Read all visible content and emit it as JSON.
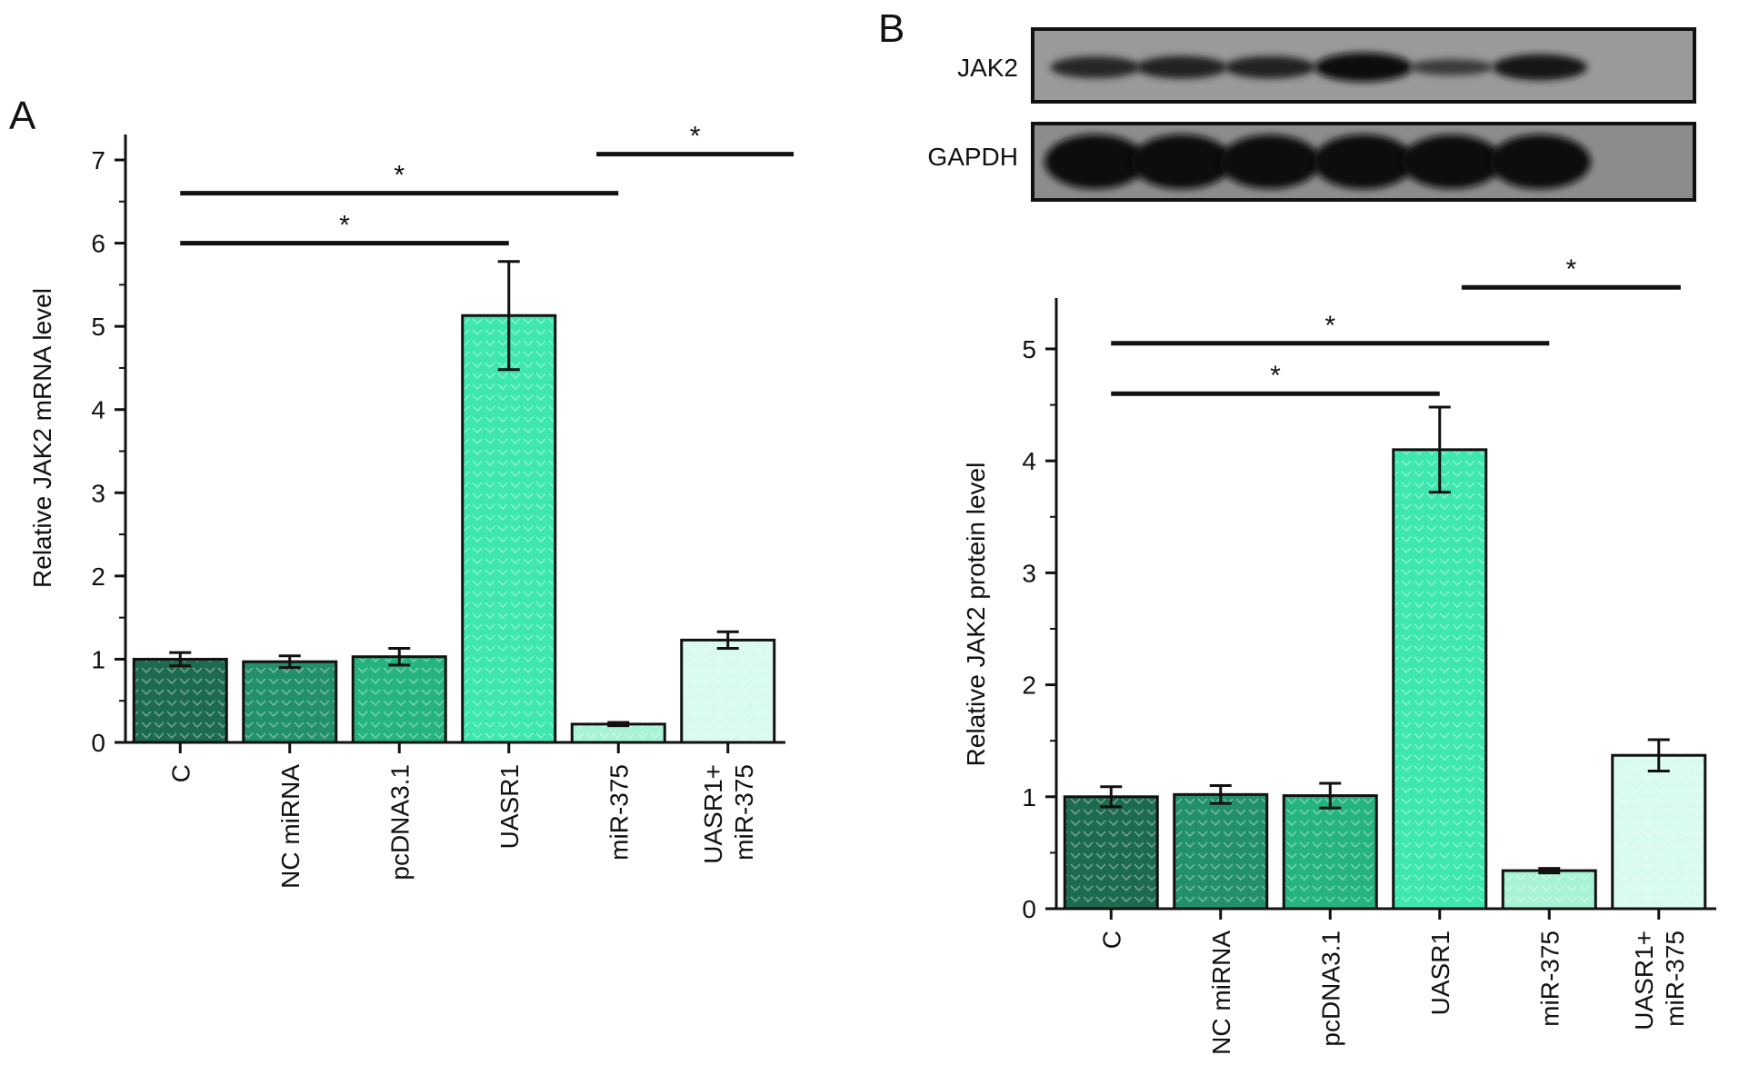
{
  "panels": {
    "a": {
      "letter": "A"
    },
    "b": {
      "letter": "B"
    }
  },
  "blot": {
    "rows": [
      {
        "label": "JAK2",
        "intensities": [
          0.55,
          0.6,
          0.58,
          1.0,
          0.2,
          0.8
        ]
      },
      {
        "label": "GAPDH",
        "intensities": [
          1.0,
          1.0,
          0.98,
          1.0,
          0.98,
          1.0
        ]
      }
    ]
  },
  "colors": {
    "bar_fills": [
      "#1d6b4e",
      "#22906a",
      "#25b47f",
      "#3ee7b0",
      "#a8f3d6",
      "#d9fbee"
    ],
    "ink": "#111111"
  },
  "chart_data": [
    {
      "panel": "A",
      "type": "bar",
      "categories": [
        "C",
        "NC miRNA",
        "pcDNA3.1",
        "UASR1",
        "miR-375",
        "UASR1+\nmiR-375"
      ],
      "values": [
        1.0,
        0.97,
        1.03,
        5.13,
        0.22,
        1.23
      ],
      "errors": [
        0.08,
        0.07,
        0.1,
        0.65,
        0.02,
        0.1
      ],
      "title": "",
      "xlabel": "",
      "ylabel": "Relative JAK2 mRNA level",
      "ylim": [
        0,
        7
      ],
      "yticks": [
        "0",
        "1",
        "2",
        "3",
        "4",
        "5",
        "6",
        "7"
      ],
      "significance": [
        {
          "from": 0,
          "to": 3,
          "label": "*",
          "level": 6.0
        },
        {
          "from": 0,
          "to": 4,
          "label": "*",
          "level": 6.6
        },
        {
          "from": 3.8,
          "to": 5.6,
          "label": "*",
          "level": 7.07
        }
      ],
      "grid": false,
      "legend": "none"
    },
    {
      "panel": "B",
      "type": "bar",
      "categories": [
        "C",
        "NC miRNA",
        "pcDNA3.1",
        "UASR1",
        "miR-375",
        "UASR1+\nmiR-375"
      ],
      "values": [
        1.0,
        1.02,
        1.01,
        4.1,
        0.34,
        1.37
      ],
      "errors": [
        0.09,
        0.08,
        0.11,
        0.38,
        0.02,
        0.14
      ],
      "title": "",
      "xlabel": "",
      "ylabel": "Relative JAK2 protein level",
      "ylim": [
        0,
        5.3
      ],
      "yticks": [
        "0",
        "1",
        "2",
        "3",
        "4",
        "5"
      ],
      "significance": [
        {
          "from": 0,
          "to": 3,
          "label": "*",
          "level": 4.6
        },
        {
          "from": 0,
          "to": 4,
          "label": "*",
          "level": 5.05
        },
        {
          "from": 3.2,
          "to": 5.2,
          "label": "*",
          "level": 5.55
        }
      ],
      "grid": false,
      "legend": "none"
    }
  ]
}
